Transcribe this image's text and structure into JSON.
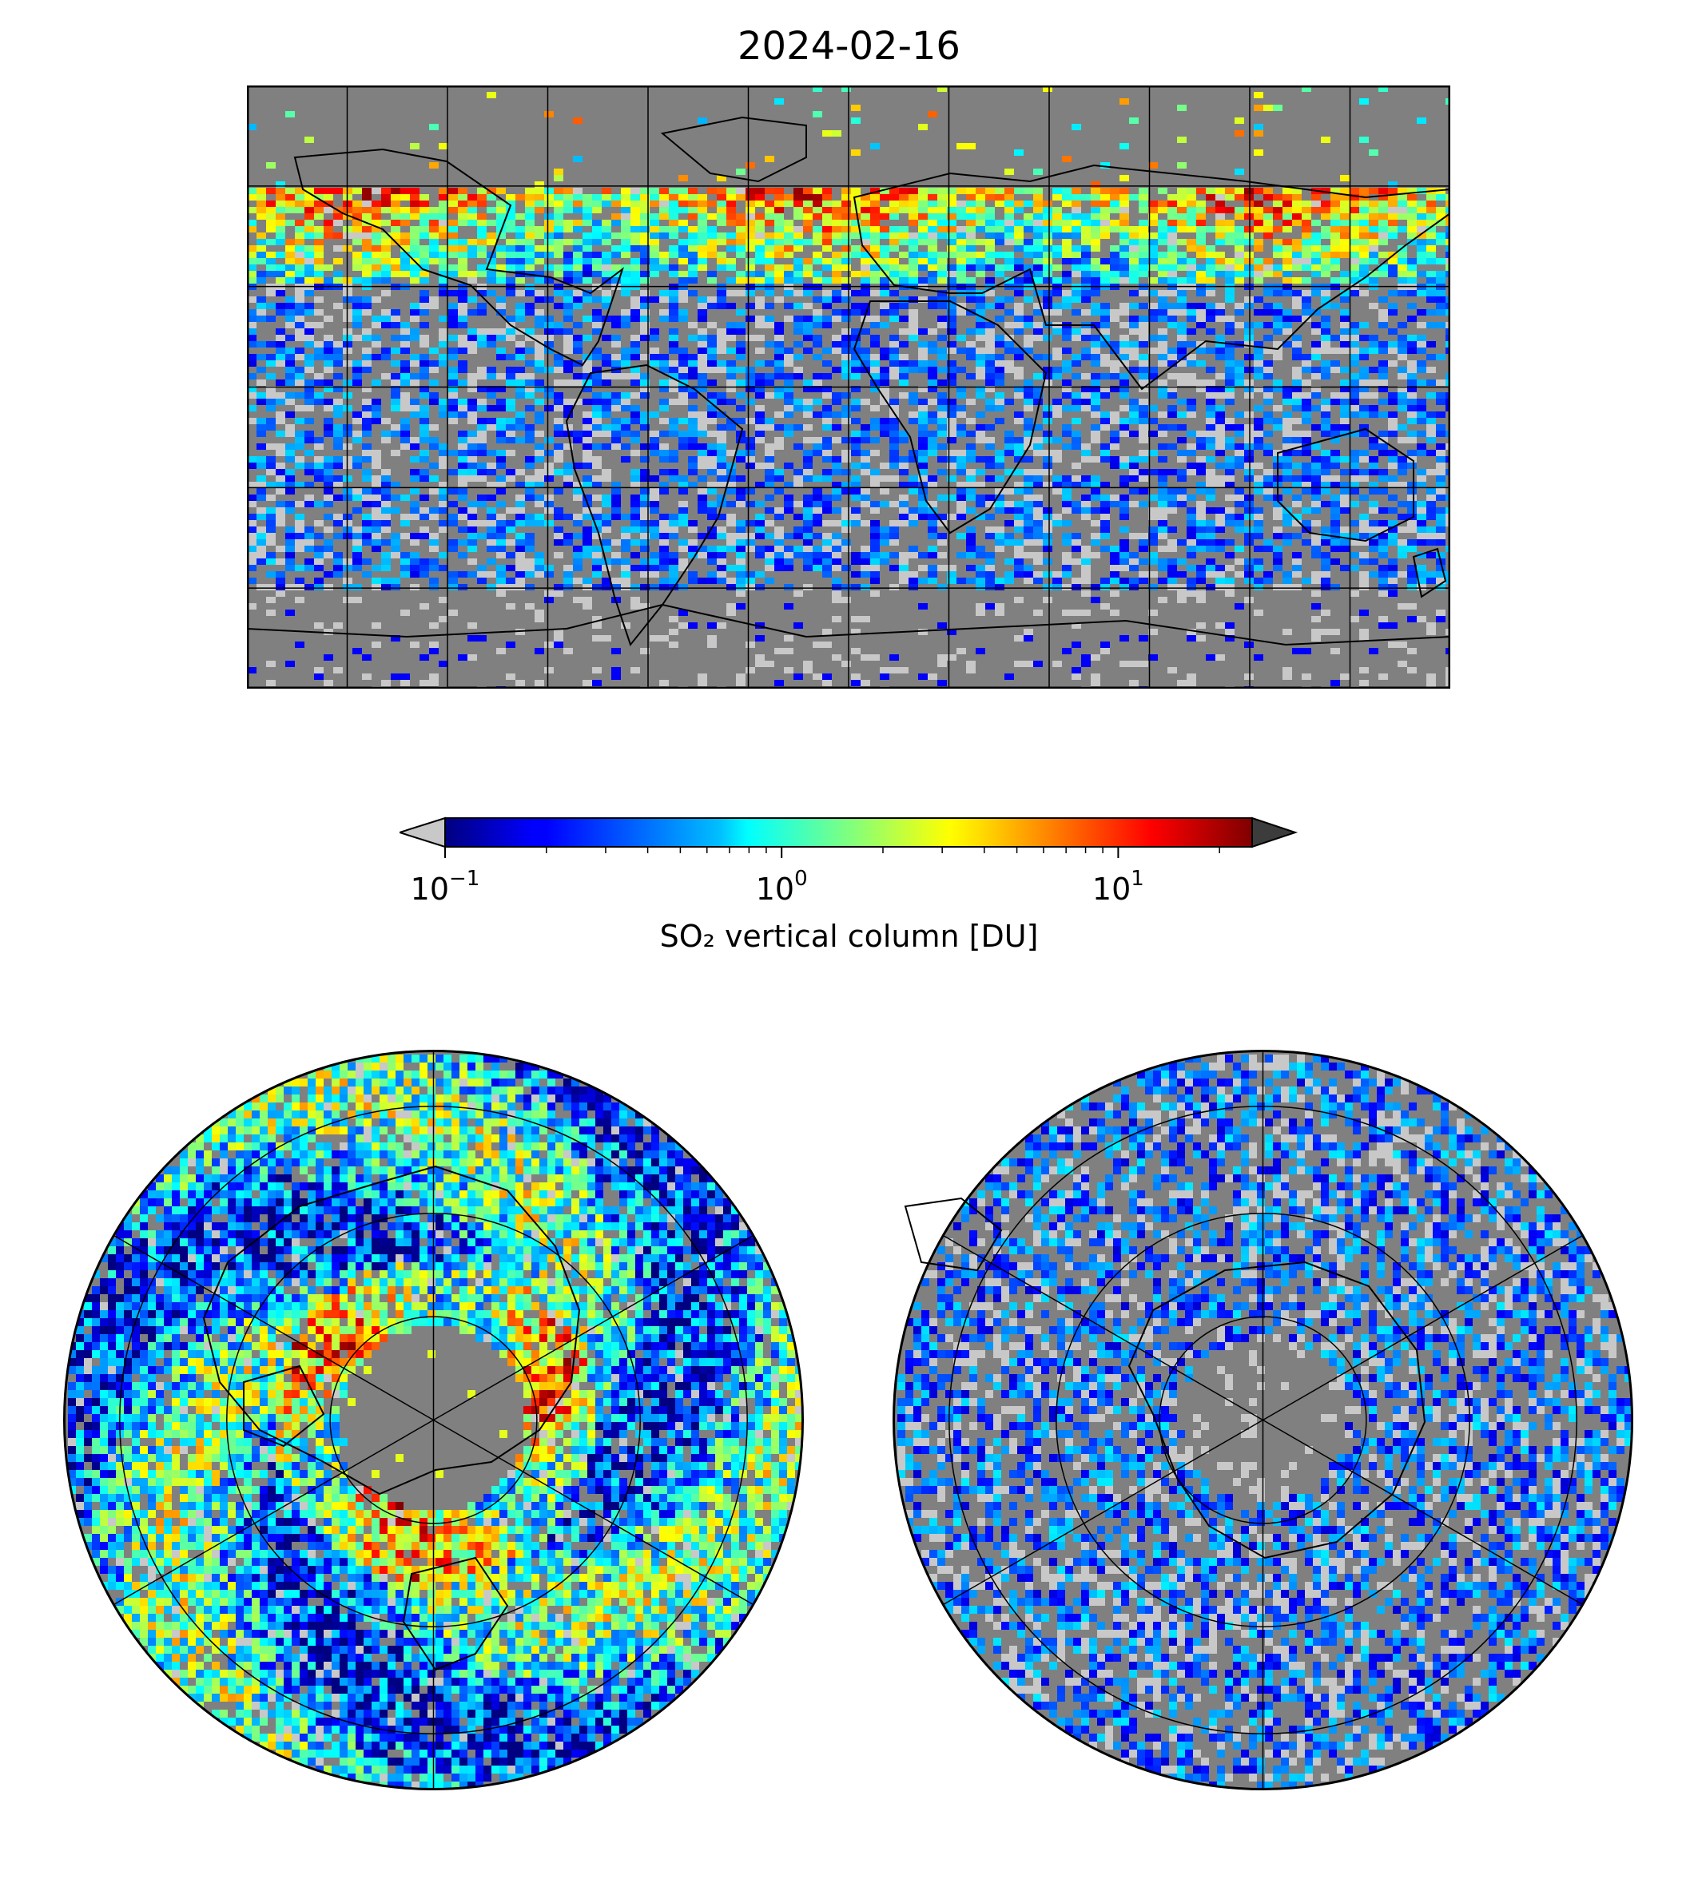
{
  "figure": {
    "title": "2024-02-16"
  },
  "colorbar": {
    "label": "SO₂ vertical column [DU]",
    "scale": "log",
    "range": [
      0.1,
      25
    ],
    "extend": "both",
    "colormap": "jet",
    "under_color": "#c8c8c8",
    "over_color": "#3c3c3c",
    "ticks": [
      {
        "value": 0.1,
        "base": "10",
        "exp": "−1"
      },
      {
        "value": 1,
        "base": "10",
        "exp": "0"
      },
      {
        "value": 10,
        "base": "10",
        "exp": "1"
      }
    ]
  },
  "colors": {
    "background_no_data": "#808080",
    "low_value": "#c8c8c8",
    "coastline": "#000000"
  },
  "maps": [
    {
      "name": "global",
      "projection": "equirectangular",
      "gridlines": "30° spacing"
    },
    {
      "name": "north-polar",
      "projection": "north polar stereographic",
      "gridlines": "rings and 60° meridians"
    },
    {
      "name": "south-polar",
      "projection": "south polar stereographic",
      "gridlines": "rings and 60° meridians"
    }
  ]
}
